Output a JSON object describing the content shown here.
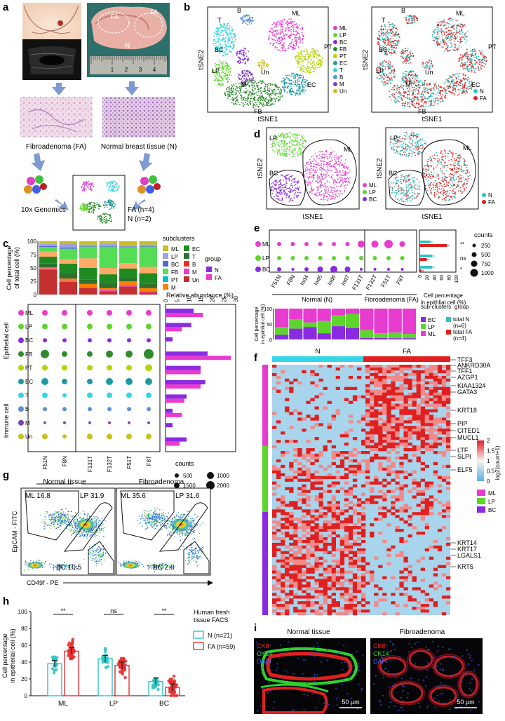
{
  "panels": {
    "a": "a",
    "b": "b",
    "c": "c",
    "d": "d",
    "e": "e",
    "f": "f",
    "g": "g",
    "h": "h",
    "i": "i"
  },
  "colors": {
    "ML": "#e83bd0",
    "LP": "#5cd62c",
    "BC": "#8a2be2",
    "FB": "#2e8b2e",
    "PT": "#b5d400",
    "EC": "#1f9a9a",
    "T": "#33d6e6",
    "B": "#5b8fd9",
    "M": "#7b3fb5",
    "Un": "#c8c020",
    "N": "#2ec4c4",
    "FA": "#e02020",
    "FA_c": "#ff8000"
  },
  "panel_a": {
    "fa_tag": "FA",
    "n_tag": "N",
    "label_fa": "Fibroadenoma (FA)",
    "label_n": "Normal breast tissue (N)",
    "genomics": "10x Genomics",
    "count_fa": "FA (n=4)",
    "count_n": "N (n=2)"
  },
  "panel_b": {
    "tsne1": "tSNE1",
    "tsne2": "tSNE2",
    "legend": [
      "ML",
      "LP",
      "BC",
      "FB",
      "PT",
      "EC",
      "T",
      "B",
      "M",
      "Un"
    ],
    "legend_group": [
      "N",
      "FA"
    ],
    "cluster_labels": [
      "B",
      "ML",
      "T",
      "BC",
      "PT",
      "LP",
      "M",
      "Un",
      "EC",
      "FB"
    ]
  },
  "panel_c": {
    "ylabel_top": "Cell percentage of total cell (%)",
    "yticks": [
      "100",
      "75",
      "50",
      "25",
      "0"
    ],
    "subclusters_title": "subclusters",
    "group_title": "group",
    "legend_a": [
      "ML",
      "LP",
      "BC",
      "FB",
      "PT",
      "M"
    ],
    "legend_b": [
      "EC",
      "T",
      "B",
      "M",
      "Un"
    ],
    "group": [
      "N",
      "FA"
    ],
    "rows": [
      "ML",
      "LP",
      "BC",
      "FB",
      "PT",
      "EC",
      "T",
      "B",
      "M",
      "Un"
    ],
    "samples": [
      "F51N",
      "F8N",
      "F131T",
      "F132T",
      "F51T",
      "F8T"
    ],
    "group_labels": [
      "N",
      "FA"
    ],
    "row_group_epithelial": "Epithelial cell",
    "row_group_immune": "Immune cell",
    "rel_title": "Relative abundance (%)",
    "rel_ticks": [
      "0",
      "5",
      "10",
      "15",
      "20",
      "25",
      "30"
    ],
    "counts_legend": [
      "500",
      "1000",
      "1500",
      "2000"
    ],
    "counts_title": "counts"
  },
  "panel_d": {
    "tsne1": "tSNE1",
    "tsne2": "tSNE2",
    "legend": [
      "ML",
      "LP",
      "BC"
    ],
    "legend_group": [
      "N",
      "FA"
    ],
    "labels": [
      "LP",
      "ML",
      "BC"
    ]
  },
  "panel_e": {
    "rows": [
      "ML",
      "LP",
      "BC"
    ],
    "samples": [
      "F51N",
      "F8N",
      "Ind4",
      "Ind5",
      "Ind6",
      "Ind7",
      "F131T",
      "F132T",
      "F51T",
      "F8T"
    ],
    "normal": "Normal (N)",
    "fibro": "Fibroadenoma (FA)",
    "counts_title": "counts",
    "counts": [
      "250",
      "500",
      "750",
      "1000"
    ],
    "bar_ticks": [
      "0",
      "20",
      "40",
      "60",
      "80",
      "100"
    ],
    "bar_xlabel": "Cell percentage in epithlial cell (%)",
    "sig": [
      "**",
      "ns",
      "*"
    ],
    "stack_ylabel": "Cell percentage in epithlial cell (%)",
    "stack_ticks": [
      "100",
      "50",
      "0"
    ],
    "sub_title": "sub-clusters",
    "sub": [
      "BC",
      "LP",
      "ML"
    ],
    "group_title": "group",
    "group": [
      "total N (n=6)",
      "total FA (n=4)"
    ]
  },
  "panel_f": {
    "n": "N",
    "fa": "FA",
    "genes": [
      "TFF3",
      "ANKRD30A",
      "TFF1",
      "AZGP1",
      "KIAA1324",
      "GATA3",
      "KRT18",
      "PIP",
      "CITED1",
      "MUCL1",
      "LTF",
      "SLPI",
      "ELF5",
      "KRT14",
      "KRT17",
      "LGALS1",
      "KRT5"
    ],
    "scale_title": "log2(count+1)",
    "scale_ticks": [
      "2",
      "1.5",
      "1",
      "0.5",
      "0"
    ],
    "legend": [
      "ML",
      "LP",
      "BC"
    ]
  },
  "panel_g": {
    "normal": "Normal tissue",
    "fibro": "Fibroadenoma",
    "n_ml": "ML 16.8",
    "n_lp": "LP 31.9",
    "n_bc": "BC 10.5",
    "f_ml": "ML 35.6",
    "f_lp": "LP 31.6",
    "f_bc": "BC 2.8",
    "ylabel": "EpCAM - FITC",
    "xlabel": "CD49f - PE"
  },
  "panel_h": {
    "ylabel": "Cell percentage in epithelial cell (%)",
    "yticks": [
      "100",
      "80",
      "60",
      "40",
      "20",
      "0"
    ],
    "cats": [
      "ML",
      "LP",
      "BC"
    ],
    "sig": [
      "**",
      "ns",
      "**"
    ],
    "legend_title": "Human fresh tissue FACS",
    "legend": [
      "N (n=21)",
      "FA (n=59)"
    ]
  },
  "panel_i": {
    "normal": "Normal tissue",
    "fibro": "Fibroadenoma",
    "ck8": "CK8",
    "ck14": "CK14",
    "dapi": "DAPI",
    "scale": "50 μm"
  },
  "chart_data": [
    {
      "type": "bar",
      "title": "",
      "categories": [
        "ML",
        "LP",
        "BC"
      ],
      "series": [
        {
          "name": "N (n=21)",
          "values": [
            38,
            44,
            17
          ]
        },
        {
          "name": "FA (n=59)",
          "values": [
            53,
            36,
            10
          ]
        }
      ],
      "ylabel": "Cell percentage in epithelial cell (%)",
      "ylim": [
        0,
        100
      ]
    },
    {
      "type": "bar",
      "title": "",
      "categories": [
        "ML",
        "LP",
        "BC",
        "FB",
        "PT",
        "EC",
        "T",
        "B",
        "M",
        "Un"
      ],
      "series": [
        {
          "name": "N",
          "values": [
            12,
            11,
            3,
            18,
            15,
            17,
            9,
            3,
            3,
            9
          ]
        },
        {
          "name": "FA",
          "values": [
            16,
            7,
            0,
            28,
            15,
            15,
            8,
            7,
            0,
            6
          ]
        }
      ],
      "xlabel": "Relative abundance (%)",
      "ylim": [
        0,
        30
      ]
    },
    {
      "type": "bar",
      "title": "",
      "categories": [
        "ML",
        "LP",
        "BC"
      ],
      "series": [
        {
          "name": "total N (n=6)",
          "values": [
            30,
            35,
            35
          ]
        },
        {
          "name": "total FA (n=4)",
          "values": [
            75,
            20,
            5
          ]
        }
      ],
      "xlabel": "Cell percentage in epithlial cell (%)",
      "ylim": [
        0,
        100
      ]
    }
  ]
}
